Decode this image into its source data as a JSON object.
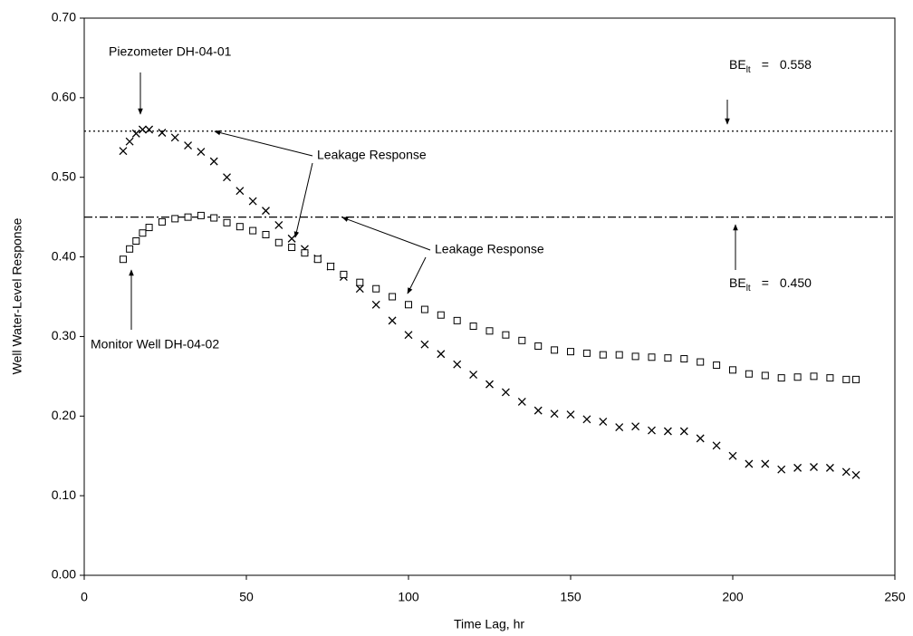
{
  "chart_data": {
    "type": "scatter",
    "x_label": "Time Lag, hr",
    "y_label": "Well Water-Level Response",
    "xlim": [
      0,
      250
    ],
    "ylim": [
      0,
      0.7
    ],
    "xticks": [
      0,
      50,
      100,
      150,
      200,
      250
    ],
    "yticks": [
      {
        "value": 0,
        "label": "0.00"
      },
      {
        "value": 0.1,
        "label": "0.10"
      },
      {
        "value": 0.2,
        "label": "0.20"
      },
      {
        "value": 0.3,
        "label": "0.30"
      },
      {
        "value": 0.4,
        "label": "0.40"
      },
      {
        "value": 0.5,
        "label": "0.50"
      },
      {
        "value": 0.6,
        "label": "0.60"
      },
      {
        "value": 0.7,
        "label": "0.70"
      }
    ],
    "series": [
      {
        "marker": "x",
        "color": "#000000",
        "x": [
          12,
          14,
          16,
          18,
          20,
          24,
          28,
          32,
          36,
          40,
          44,
          48,
          52,
          56,
          60,
          64,
          68,
          72,
          76,
          80,
          85,
          90,
          95,
          100,
          105,
          110,
          115,
          120,
          125,
          130,
          135,
          140,
          145,
          150,
          155,
          160,
          165,
          170,
          175,
          180,
          185,
          190,
          195,
          200,
          205,
          210,
          215,
          220,
          225,
          230,
          235,
          238
        ],
        "values": [
          0.533,
          0.545,
          0.555,
          0.56,
          0.56,
          0.556,
          0.55,
          0.54,
          0.532,
          0.52,
          0.5,
          0.483,
          0.47,
          0.458,
          0.44,
          0.423,
          0.41,
          0.398,
          0.388,
          0.375,
          0.36,
          0.34,
          0.32,
          0.302,
          0.29,
          0.278,
          0.265,
          0.252,
          0.24,
          0.23,
          0.218,
          0.207,
          0.203,
          0.202,
          0.196,
          0.193,
          0.186,
          0.187,
          0.182,
          0.181,
          0.181,
          0.172,
          0.163,
          0.15,
          0.14,
          0.14,
          0.133,
          0.135,
          0.136,
          0.135,
          0.13,
          0.126
        ]
      },
      {
        "marker": "square",
        "color": "#000000",
        "x": [
          12,
          14,
          16,
          18,
          20,
          24,
          28,
          32,
          36,
          40,
          44,
          48,
          52,
          56,
          60,
          64,
          68,
          72,
          76,
          80,
          85,
          90,
          95,
          100,
          105,
          110,
          115,
          120,
          125,
          130,
          135,
          140,
          145,
          150,
          155,
          160,
          165,
          170,
          175,
          180,
          185,
          190,
          195,
          200,
          205,
          210,
          215,
          220,
          225,
          230,
          235,
          238
        ],
        "values": [
          0.397,
          0.41,
          0.42,
          0.43,
          0.437,
          0.444,
          0.448,
          0.45,
          0.452,
          0.449,
          0.443,
          0.438,
          0.433,
          0.428,
          0.418,
          0.412,
          0.405,
          0.397,
          0.388,
          0.378,
          0.368,
          0.36,
          0.35,
          0.34,
          0.334,
          0.327,
          0.32,
          0.313,
          0.307,
          0.302,
          0.295,
          0.288,
          0.283,
          0.281,
          0.279,
          0.277,
          0.277,
          0.275,
          0.274,
          0.273,
          0.272,
          0.268,
          0.264,
          0.258,
          0.253,
          0.251,
          0.248,
          0.249,
          0.25,
          0.248,
          0.246,
          0.246
        ]
      }
    ],
    "reference_lines": [
      {
        "name": "BE",
        "subscript": "lt",
        "operator": "=",
        "value": 0.558,
        "label": "0.558",
        "style": "dotted"
      },
      {
        "name": "BE",
        "subscript": "lt",
        "operator": "=",
        "value": 0.45,
        "label": "0.450",
        "style": "dashdot"
      }
    ],
    "annotations": [
      "Piezometer DH-04-01",
      "Leakage Response",
      "Leakage Response",
      "Monitor Well DH-04-02"
    ]
  }
}
